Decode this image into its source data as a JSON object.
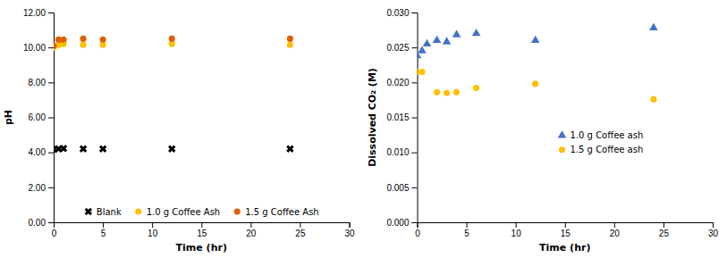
{
  "chart_data": [
    {
      "type": "scatter",
      "xlabel": "Time (hr)",
      "ylabel": "pH",
      "xlim": [
        0,
        30
      ],
      "ylim": [
        0,
        12
      ],
      "xticks": [
        0,
        5,
        10,
        15,
        20,
        25,
        30
      ],
      "yticks": [
        {
          "value": 0.0,
          "label": "0.00"
        },
        {
          "value": 2.0,
          "label": "2.00"
        },
        {
          "value": 4.0,
          "label": "4.00"
        },
        {
          "value": 6.0,
          "label": "6.00"
        },
        {
          "value": 8.0,
          "label": "8.00"
        },
        {
          "value": 10.0,
          "label": "10.00"
        },
        {
          "value": 12.0,
          "label": "12.00"
        }
      ],
      "legend": "lower center",
      "series": [
        {
          "name": "Blank",
          "color": "#000000",
          "marker": "x",
          "x": [
            0,
            0.5,
            1,
            3,
            5,
            12,
            24
          ],
          "values": [
            4.18,
            4.2,
            4.22,
            4.2,
            4.2,
            4.2,
            4.2
          ]
        },
        {
          "name": "1.0 g Coffee Ash",
          "color": "#FFC000",
          "marker": "circle",
          "x": [
            0,
            0.5,
            1,
            3,
            5,
            12,
            24
          ],
          "values": [
            10.0,
            10.15,
            10.2,
            10.15,
            10.15,
            10.2,
            10.15
          ]
        },
        {
          "name": "1.5 g Coffee Ash",
          "color": "#E06000",
          "marker": "circle",
          "x": [
            0,
            0.5,
            1,
            3,
            5,
            12,
            24
          ],
          "values": [
            10.1,
            10.45,
            10.45,
            10.5,
            10.45,
            10.5,
            10.5
          ]
        }
      ]
    },
    {
      "type": "scatter",
      "xlabel": "Time (hr)",
      "ylabel": "Dissolved CO₂ (M)",
      "xlim": [
        0,
        30
      ],
      "ylim": [
        0,
        0.03
      ],
      "xticks": [
        0,
        5,
        10,
        15,
        20,
        25,
        30
      ],
      "yticks": [
        {
          "value": 0.0,
          "label": "0.000"
        },
        {
          "value": 0.005,
          "label": "0.005"
        },
        {
          "value": 0.01,
          "label": "0.010"
        },
        {
          "value": 0.015,
          "label": "0.015"
        },
        {
          "value": 0.02,
          "label": "0.020"
        },
        {
          "value": 0.025,
          "label": "0.025"
        },
        {
          "value": 0.03,
          "label": "0.030"
        }
      ],
      "legend": "center",
      "series": [
        {
          "name": "1.0 g Coffee ash",
          "color": "#4472C4",
          "marker": "triangle",
          "x": [
            0,
            0.5,
            1,
            2,
            3,
            4,
            6,
            12,
            24
          ],
          "values": [
            0.0238,
            0.0245,
            0.0255,
            0.026,
            0.0258,
            0.0268,
            0.027,
            0.026,
            0.0278
          ]
        },
        {
          "name": "1.5 g Coffee ash",
          "color": "#FFC000",
          "marker": "circle",
          "x": [
            0,
            0.5,
            2,
            3,
            4,
            6,
            12,
            24
          ],
          "values": [
            0.0215,
            0.0215,
            0.0186,
            0.0185,
            0.0186,
            0.0192,
            0.0198,
            0.0176
          ]
        }
      ]
    }
  ]
}
